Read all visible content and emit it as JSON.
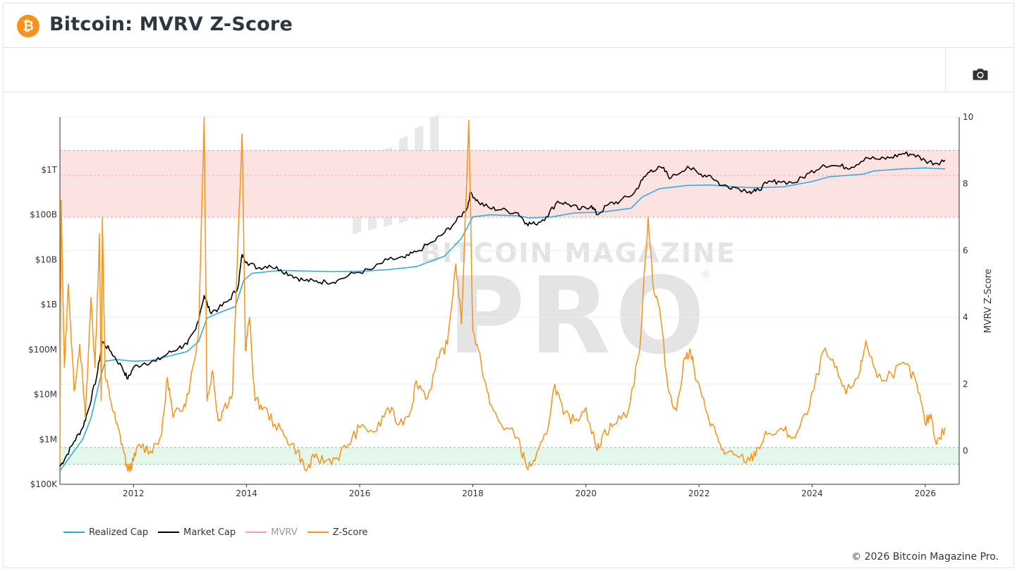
{
  "header": {
    "title": "Bitcoin: MVRV Z-Score",
    "logo_glyph": "₿",
    "logo_color": "#f7931a"
  },
  "toolbar": {
    "camera_icon": "camera-icon"
  },
  "footer": {
    "copyright": "© 2026 Bitcoin Magazine Pro."
  },
  "watermark": {
    "line1": "BITCOIN MAGAZINE",
    "line2": "PRO",
    "reg": "®"
  },
  "colors": {
    "realized": "#29abe2",
    "market": "#000000",
    "mvrv": "#f4a3a3",
    "zscore": "#f7931a",
    "red_band": "#fde2e2",
    "green_band": "#e3f7ea"
  },
  "chart_data": {
    "type": "line",
    "title": "Bitcoin: MVRV Z-Score",
    "y_left": {
      "scale": "log",
      "ticks": [
        "$100K",
        "$1M",
        "$10M",
        "$100M",
        "$1B",
        "$10B",
        "$100B",
        "$1T"
      ],
      "range": [
        "1e5",
        "1.5e13"
      ]
    },
    "y_right": {
      "label": "MVRV Z-Score",
      "ticks": [
        0,
        2,
        4,
        6,
        8,
        10
      ],
      "range": [
        -1,
        10
      ]
    },
    "x": {
      "ticks": [
        "2012",
        "2014",
        "2016",
        "2018",
        "2020",
        "2022",
        "2024",
        "2026"
      ],
      "range": [
        2010.7,
        2026.6
      ]
    },
    "bands": [
      {
        "name": "overvalued",
        "from": 7,
        "to": 9
      },
      {
        "name": "undervalued",
        "from": -0.4,
        "to": 0.1
      }
    ],
    "legend": [
      "Realized Cap",
      "Market Cap",
      "MVRV",
      "Z-Score"
    ],
    "series": [
      {
        "name": "Market Cap",
        "axis": "left",
        "points": [
          [
            2010.7,
            250000
          ],
          [
            2010.8,
            400000
          ],
          [
            2010.95,
            900000
          ],
          [
            2011.1,
            1800000
          ],
          [
            2011.2,
            4500000
          ],
          [
            2011.35,
            25000000
          ],
          [
            2011.45,
            150000000
          ],
          [
            2011.6,
            90000000
          ],
          [
            2011.8,
            40000000
          ],
          [
            2011.9,
            22000000
          ],
          [
            2012.0,
            40000000
          ],
          [
            2012.2,
            50000000
          ],
          [
            2012.4,
            55000000
          ],
          [
            2012.6,
            80000000
          ],
          [
            2012.8,
            110000000
          ],
          [
            2012.95,
            130000000
          ],
          [
            2013.1,
            280000000
          ],
          [
            2013.25,
            1600000000
          ],
          [
            2013.35,
            700000000
          ],
          [
            2013.5,
            800000000
          ],
          [
            2013.7,
            1300000000
          ],
          [
            2013.85,
            2500000000
          ],
          [
            2013.92,
            13000000000
          ],
          [
            2014.0,
            9000000000
          ],
          [
            2014.2,
            6500000000
          ],
          [
            2014.4,
            7500000000
          ],
          [
            2014.6,
            6000000000
          ],
          [
            2014.8,
            4500000000
          ],
          [
            2015.0,
            3500000000
          ],
          [
            2015.2,
            3300000000
          ],
          [
            2015.4,
            3200000000
          ],
          [
            2015.6,
            3400000000
          ],
          [
            2015.9,
            5000000000
          ],
          [
            2016.2,
            6000000000
          ],
          [
            2016.5,
            10000000000
          ],
          [
            2016.8,
            11000000000
          ],
          [
            2017.0,
            15000000000
          ],
          [
            2017.3,
            25000000000
          ],
          [
            2017.5,
            40000000000
          ],
          [
            2017.7,
            70000000000
          ],
          [
            2017.9,
            140000000000
          ],
          [
            2017.96,
            320000000000
          ],
          [
            2018.1,
            190000000000
          ],
          [
            2018.3,
            140000000000
          ],
          [
            2018.5,
            130000000000
          ],
          [
            2018.8,
            110000000000
          ],
          [
            2018.95,
            65000000000
          ],
          [
            2019.1,
            62000000000
          ],
          [
            2019.3,
            90000000000
          ],
          [
            2019.5,
            200000000000
          ],
          [
            2019.7,
            170000000000
          ],
          [
            2019.9,
            130000000000
          ],
          [
            2020.1,
            160000000000
          ],
          [
            2020.2,
            100000000000
          ],
          [
            2020.4,
            170000000000
          ],
          [
            2020.6,
            200000000000
          ],
          [
            2020.85,
            300000000000
          ],
          [
            2021.0,
            600000000000
          ],
          [
            2021.15,
            1000000000000
          ],
          [
            2021.35,
            1100000000000
          ],
          [
            2021.5,
            650000000000
          ],
          [
            2021.8,
            1200000000000
          ],
          [
            2022.0,
            800000000000
          ],
          [
            2022.2,
            750000000000
          ],
          [
            2022.4,
            450000000000
          ],
          [
            2022.6,
            420000000000
          ],
          [
            2022.9,
            330000000000
          ],
          [
            2023.0,
            330000000000
          ],
          [
            2023.2,
            500000000000
          ],
          [
            2023.4,
            560000000000
          ],
          [
            2023.7,
            520000000000
          ],
          [
            2023.95,
            850000000000
          ],
          [
            2024.2,
            1300000000000
          ],
          [
            2024.5,
            1200000000000
          ],
          [
            2024.7,
            1150000000000
          ],
          [
            2024.95,
            1900000000000
          ],
          [
            2025.2,
            1700000000000
          ],
          [
            2025.4,
            1900000000000
          ],
          [
            2025.6,
            2300000000000
          ],
          [
            2025.8,
            2200000000000
          ],
          [
            2026.0,
            1600000000000
          ],
          [
            2026.2,
            1400000000000
          ],
          [
            2026.35,
            1650000000000
          ]
        ]
      },
      {
        "name": "Realized Cap",
        "axis": "left",
        "points": [
          [
            2010.7,
            200000
          ],
          [
            2010.9,
            450000
          ],
          [
            2011.1,
            1000000
          ],
          [
            2011.25,
            3000000
          ],
          [
            2011.4,
            20000000
          ],
          [
            2011.5,
            55000000
          ],
          [
            2011.7,
            60000000
          ],
          [
            2012.0,
            55000000
          ],
          [
            2012.3,
            57000000
          ],
          [
            2012.6,
            70000000
          ],
          [
            2012.95,
            90000000
          ],
          [
            2013.15,
            150000000
          ],
          [
            2013.3,
            500000000
          ],
          [
            2013.5,
            650000000
          ],
          [
            2013.8,
            900000000
          ],
          [
            2013.95,
            3500000000
          ],
          [
            2014.1,
            5000000000
          ],
          [
            2014.3,
            5300000000
          ],
          [
            2014.6,
            5800000000
          ],
          [
            2015.0,
            5600000000
          ],
          [
            2015.5,
            5400000000
          ],
          [
            2016.0,
            5500000000
          ],
          [
            2016.5,
            6000000000
          ],
          [
            2017.0,
            7000000000
          ],
          [
            2017.5,
            12000000000
          ],
          [
            2017.8,
            30000000000
          ],
          [
            2018.0,
            90000000000
          ],
          [
            2018.3,
            100000000000
          ],
          [
            2018.8,
            95000000000
          ],
          [
            2019.0,
            85000000000
          ],
          [
            2019.4,
            90000000000
          ],
          [
            2019.8,
            110000000000
          ],
          [
            2020.3,
            115000000000
          ],
          [
            2020.8,
            140000000000
          ],
          [
            2021.0,
            250000000000
          ],
          [
            2021.3,
            380000000000
          ],
          [
            2021.8,
            450000000000
          ],
          [
            2022.2,
            460000000000
          ],
          [
            2022.6,
            420000000000
          ],
          [
            2023.0,
            400000000000
          ],
          [
            2023.5,
            420000000000
          ],
          [
            2024.0,
            550000000000
          ],
          [
            2024.3,
            700000000000
          ],
          [
            2024.9,
            800000000000
          ],
          [
            2025.1,
            950000000000
          ],
          [
            2025.6,
            1050000000000
          ],
          [
            2026.0,
            1100000000000
          ],
          [
            2026.35,
            1050000000000
          ]
        ]
      },
      {
        "name": "Z-Score",
        "axis": "right",
        "points": [
          [
            2010.7,
            -0.4
          ],
          [
            2010.72,
            7.5
          ],
          [
            2010.78,
            2.5
          ],
          [
            2010.85,
            5
          ],
          [
            2010.95,
            1.8
          ],
          [
            2011.05,
            3.2
          ],
          [
            2011.15,
            1
          ],
          [
            2011.25,
            4.6
          ],
          [
            2011.32,
            2.5
          ],
          [
            2011.4,
            6.5
          ],
          [
            2011.43,
            1.5
          ],
          [
            2011.45,
            7
          ],
          [
            2011.5,
            2.2
          ],
          [
            2011.6,
            1.5
          ],
          [
            2011.7,
            0.8
          ],
          [
            2011.8,
            0.2
          ],
          [
            2011.9,
            -0.6
          ],
          [
            2012.0,
            -0.3
          ],
          [
            2012.1,
            0.2
          ],
          [
            2012.3,
            0
          ],
          [
            2012.5,
            0.5
          ],
          [
            2012.6,
            2.2
          ],
          [
            2012.7,
            1
          ],
          [
            2012.9,
            1.4
          ],
          [
            2013.0,
            2
          ],
          [
            2013.15,
            3.5
          ],
          [
            2013.25,
            10
          ],
          [
            2013.3,
            1.5
          ],
          [
            2013.4,
            2.4
          ],
          [
            2013.5,
            0.9
          ],
          [
            2013.6,
            1.3
          ],
          [
            2013.75,
            1.7
          ],
          [
            2013.92,
            9.5
          ],
          [
            2013.98,
            3
          ],
          [
            2014.05,
            4
          ],
          [
            2014.15,
            1.5
          ],
          [
            2014.3,
            1.3
          ],
          [
            2014.5,
            0.8
          ],
          [
            2014.7,
            0.4
          ],
          [
            2014.9,
            0
          ],
          [
            2015.05,
            -0.6
          ],
          [
            2015.2,
            -0.2
          ],
          [
            2015.4,
            -0.3
          ],
          [
            2015.6,
            -0.2
          ],
          [
            2015.8,
            0.2
          ],
          [
            2016.0,
            0.7
          ],
          [
            2016.3,
            0.6
          ],
          [
            2016.5,
            1.3
          ],
          [
            2016.7,
            0.8
          ],
          [
            2016.9,
            1.2
          ],
          [
            2017.0,
            2.1
          ],
          [
            2017.2,
            1.6
          ],
          [
            2017.4,
            2.8
          ],
          [
            2017.55,
            3.2
          ],
          [
            2017.7,
            5.6
          ],
          [
            2017.8,
            3.8
          ],
          [
            2017.93,
            9.9
          ],
          [
            2018.0,
            3.6
          ],
          [
            2018.15,
            2.6
          ],
          [
            2018.3,
            1.4
          ],
          [
            2018.5,
            0.8
          ],
          [
            2018.8,
            0.4
          ],
          [
            2018.95,
            -0.5
          ],
          [
            2019.1,
            -0.3
          ],
          [
            2019.3,
            0.5
          ],
          [
            2019.45,
            2
          ],
          [
            2019.6,
            1.1
          ],
          [
            2019.8,
            0.9
          ],
          [
            2020.0,
            1.3
          ],
          [
            2020.2,
            0
          ],
          [
            2020.3,
            0.5
          ],
          [
            2020.5,
            0.8
          ],
          [
            2020.75,
            1.2
          ],
          [
            2020.95,
            3
          ],
          [
            2021.1,
            7
          ],
          [
            2021.2,
            4.8
          ],
          [
            2021.3,
            4.3
          ],
          [
            2021.45,
            1.9
          ],
          [
            2021.6,
            1.2
          ],
          [
            2021.75,
            2.8
          ],
          [
            2021.85,
            3
          ],
          [
            2021.95,
            2.1
          ],
          [
            2022.15,
            1.1
          ],
          [
            2022.3,
            0.5
          ],
          [
            2022.45,
            -0.1
          ],
          [
            2022.7,
            -0.2
          ],
          [
            2022.9,
            -0.3
          ],
          [
            2023.05,
            0.1
          ],
          [
            2023.2,
            0.5
          ],
          [
            2023.5,
            0.6
          ],
          [
            2023.7,
            0.4
          ],
          [
            2023.95,
            1.3
          ],
          [
            2024.2,
            3
          ],
          [
            2024.4,
            2.5
          ],
          [
            2024.6,
            1.7
          ],
          [
            2024.85,
            2.4
          ],
          [
            2024.95,
            3.3
          ],
          [
            2025.15,
            2.2
          ],
          [
            2025.4,
            2.3
          ],
          [
            2025.65,
            2.6
          ],
          [
            2025.85,
            2
          ],
          [
            2026.0,
            0.8
          ],
          [
            2026.1,
            1.1
          ],
          [
            2026.2,
            0.2
          ],
          [
            2026.35,
            0.7
          ]
        ]
      }
    ]
  }
}
